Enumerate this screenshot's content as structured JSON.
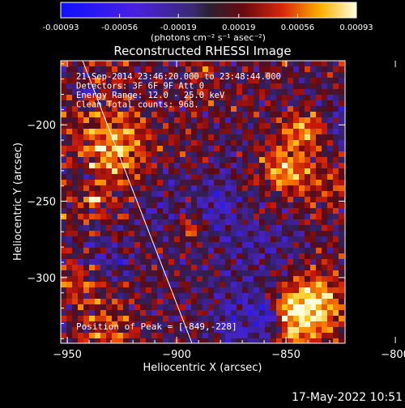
{
  "chart_data": {
    "type": "heatmap",
    "title": "Reconstructed RHESSI Image",
    "xlabel": "Heliocentric X (arcsec)",
    "ylabel": "Heliocentric Y (arcsec)",
    "xlim": [
      -953,
      -823
    ],
    "ylim": [
      -343,
      -158
    ],
    "x_ticks": [
      -950,
      -900,
      -850,
      -800
    ],
    "y_ticks": [
      -200,
      -250,
      -300
    ],
    "x_tick_labels": [
      "−950",
      "−900",
      "−850",
      "−800"
    ],
    "y_tick_labels": [
      "−200",
      "−250",
      "−300"
    ],
    "colorbar": {
      "ticks": [
        -0.00093,
        -0.00056,
        -0.00019,
        0.00019,
        0.00056,
        0.00093
      ],
      "tick_labels": [
        "-0.00093",
        "-0.00056",
        "-0.00019",
        "0.00019",
        "0.00056",
        "0.00093"
      ],
      "unit_label": "(photons cm⁻² s⁻¹ asec⁻²)",
      "range": [
        -0.00093,
        0.00093
      ]
    },
    "annotations": [
      "21-Sep-2014 23:46:20.000 to 23:48:44.000",
      "Detectors: 3F 6F 9F  Att 0",
      "Energy Range: 12.0 - 25.0 keV",
      "Clean      Total counts: 968."
    ],
    "peak_label": "Position of Peak = [-849,-228]",
    "peak": {
      "x": -849,
      "y": -228
    },
    "limb_line": {
      "x1": -943,
      "y1": -158,
      "x2": -893,
      "y2": -343
    },
    "grid": false
  },
  "footer": {
    "timestamp": "17-May-2022 10:51"
  }
}
